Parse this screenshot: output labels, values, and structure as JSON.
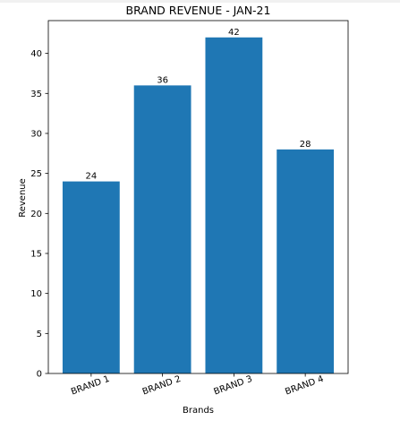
{
  "chart_data": {
    "type": "bar",
    "title": "BRAND REVENUE - JAN-21",
    "xlabel": "Brands",
    "ylabel": "Revenue",
    "categories": [
      "BRAND 1",
      "BRAND 2",
      "BRAND 3",
      "BRAND 4"
    ],
    "values": [
      24,
      36,
      42,
      28
    ],
    "data_labels": [
      "24",
      "36",
      "42",
      "28"
    ],
    "ylim": [
      0,
      44.1
    ],
    "yticks": [
      0,
      5,
      10,
      15,
      20,
      25,
      30,
      35,
      40
    ],
    "ytick_labels": [
      "0",
      "5",
      "10",
      "15",
      "20",
      "25",
      "30",
      "35",
      "40"
    ],
    "xtick_rotation_deg": 20,
    "bar_color": "#1f77b4",
    "grid": false,
    "legend": "none"
  }
}
